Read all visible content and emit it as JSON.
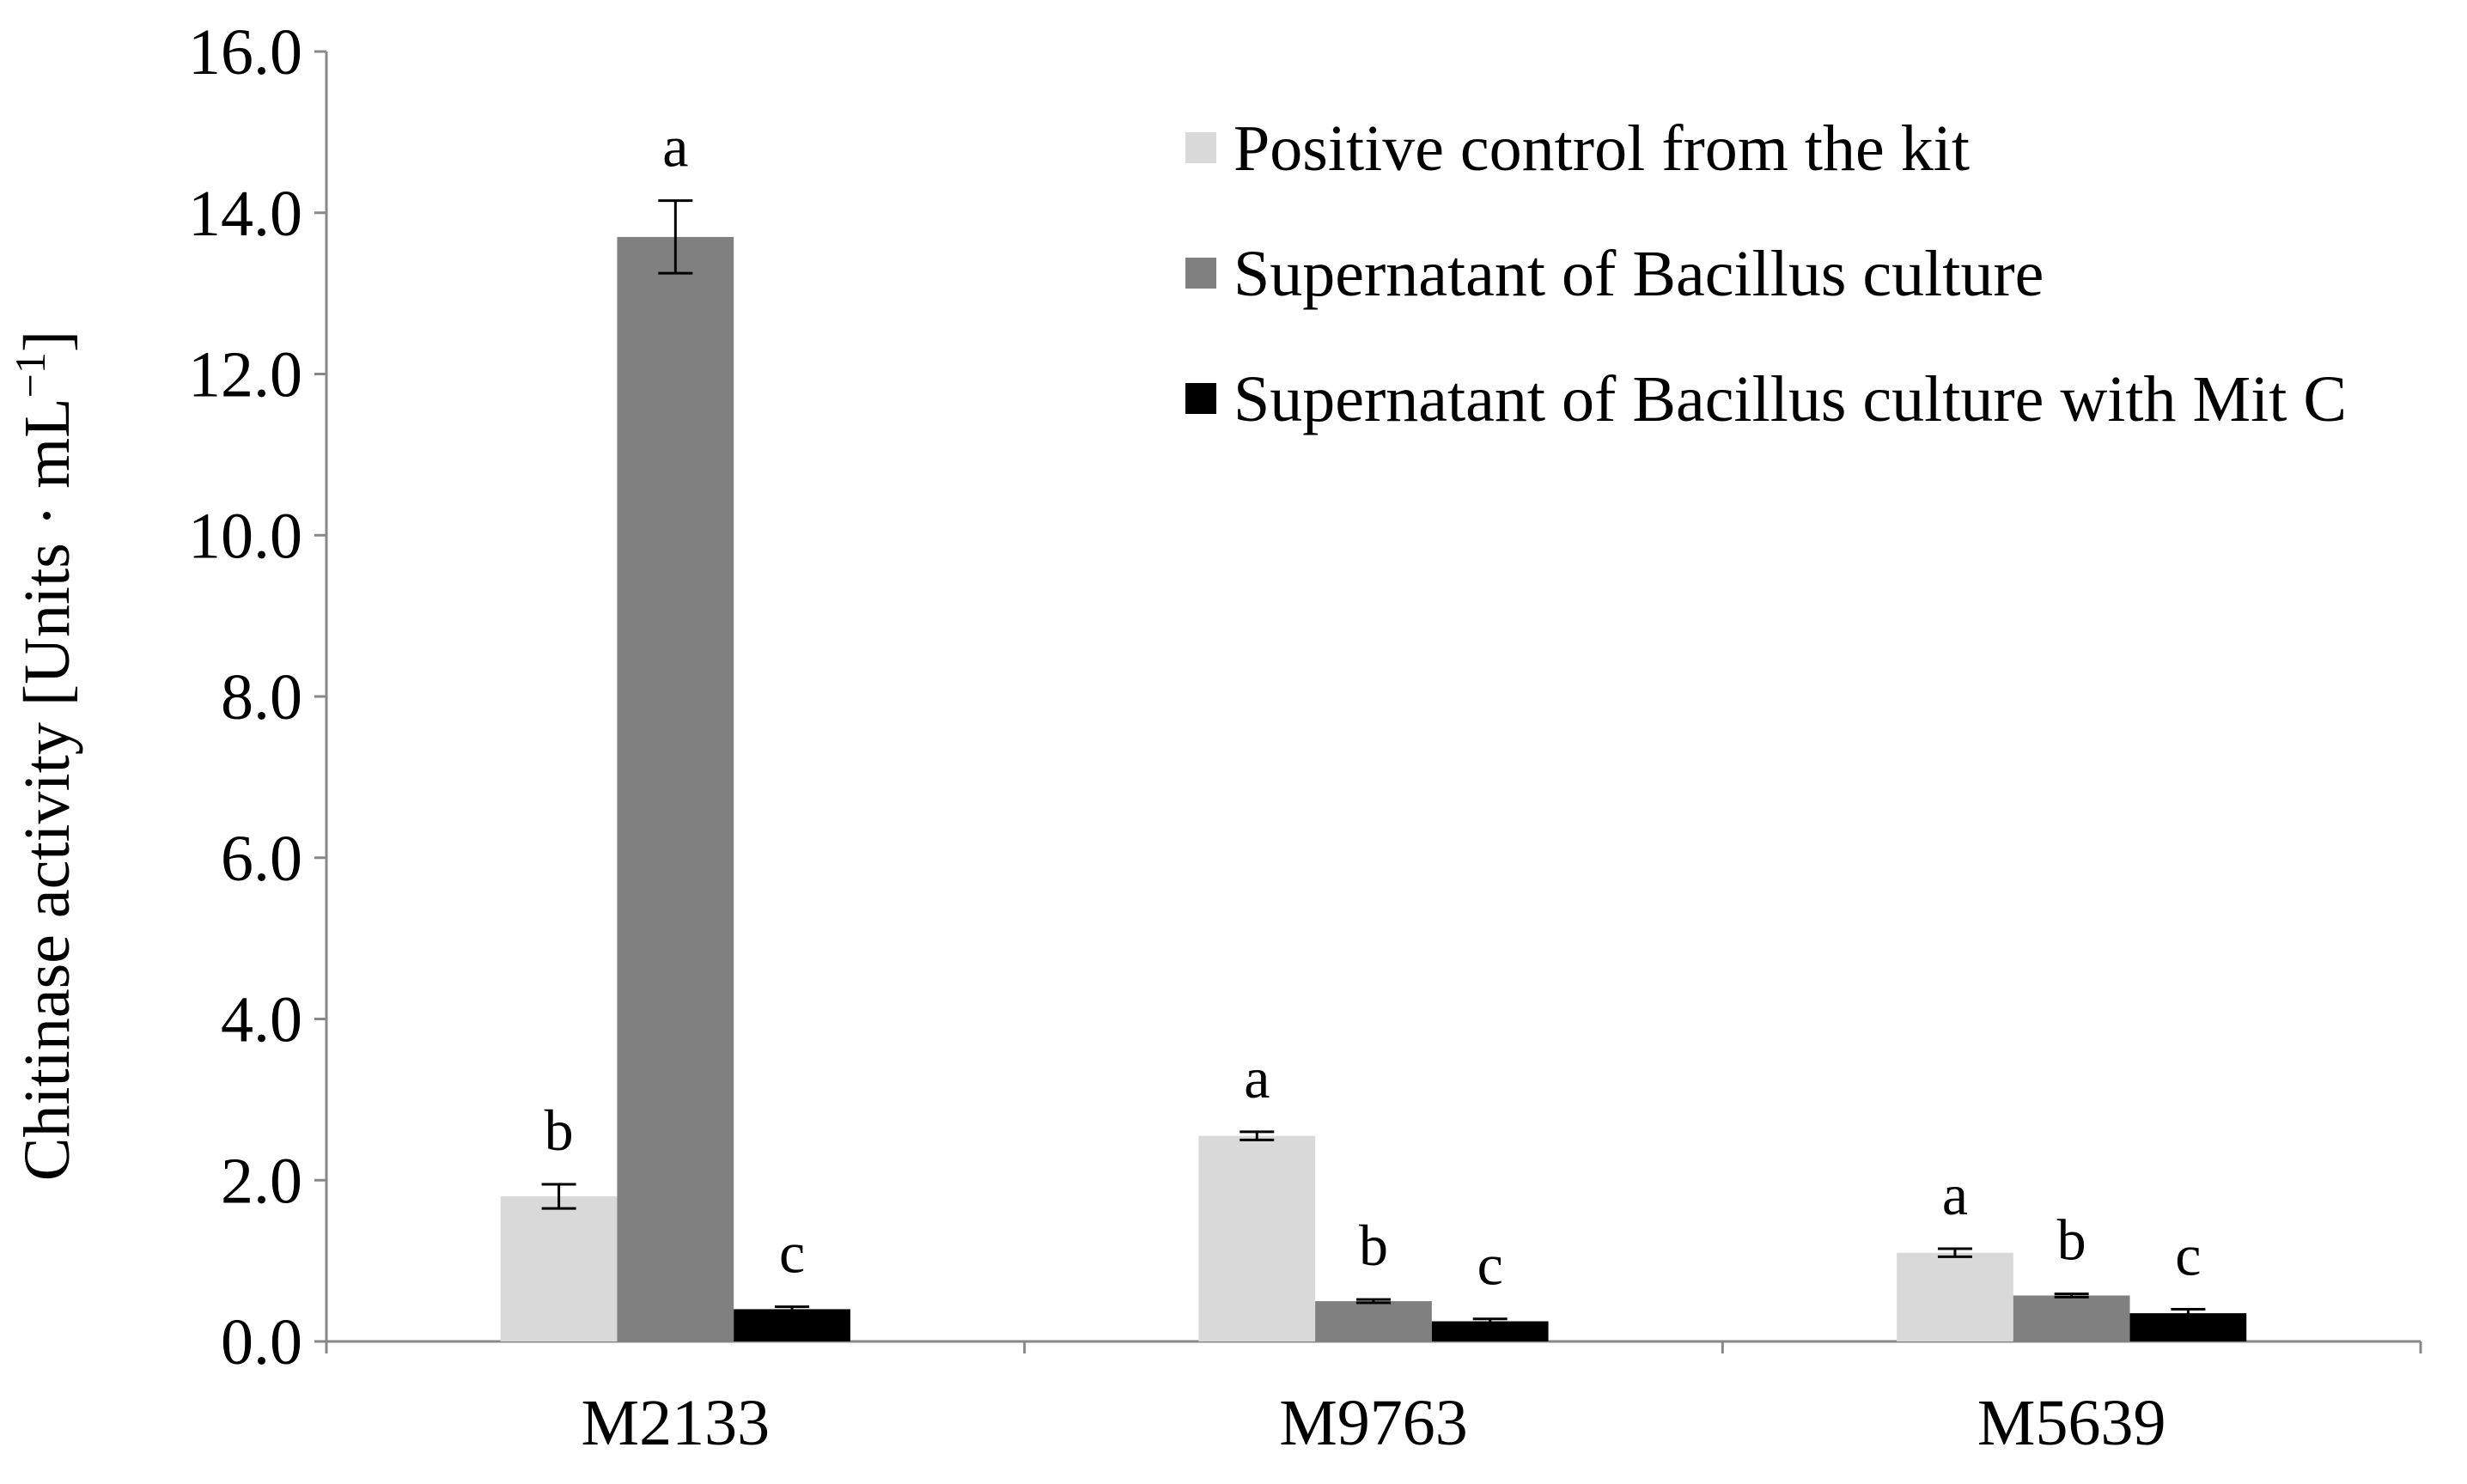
{
  "chart_data": {
    "type": "bar",
    "title": "",
    "xlabel": "",
    "ylabel": "Chitinase activity [Units · mL",
    "ylabel_superscript": "−1",
    "ylabel_suffix": "]",
    "ylim": [
      0,
      16
    ],
    "yticks": [
      "0.0",
      "2.0",
      "4.0",
      "6.0",
      "8.0",
      "10.0",
      "12.0",
      "14.0",
      "16.0"
    ],
    "categories": [
      "M2133",
      "M9763",
      "M5639"
    ],
    "legend_position": "top-right",
    "grid": false,
    "series": [
      {
        "name": "Positive control from the kit",
        "color": "#d9d9d9",
        "values": [
          1.8,
          2.55,
          1.1
        ],
        "errors": [
          0.15,
          0.05,
          0.05
        ],
        "labels": [
          "b",
          "a",
          "a"
        ]
      },
      {
        "name": "Supernatant of Bacillus culture",
        "color": "#808080",
        "values": [
          13.7,
          0.5,
          0.57
        ],
        "errors": [
          0.45,
          0.02,
          0.02
        ],
        "labels": [
          "a",
          "b",
          "b"
        ]
      },
      {
        "name": "Supernatant of Bacillus culture with Mit C",
        "color": "#000000",
        "values": [
          0.4,
          0.25,
          0.35
        ],
        "errors": [
          0.03,
          0.03,
          0.05
        ],
        "labels": [
          "c",
          "c",
          "c"
        ]
      }
    ]
  }
}
